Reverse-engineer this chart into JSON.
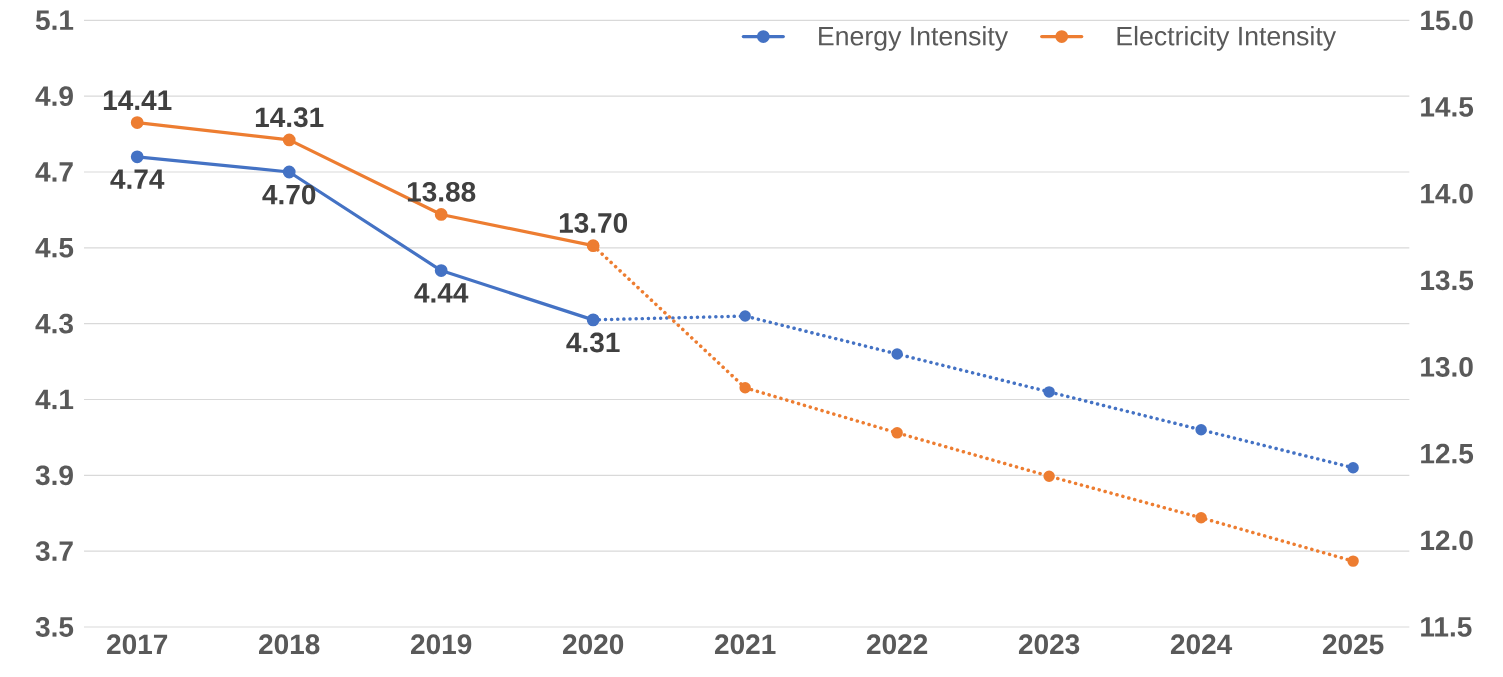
{
  "chart_data": {
    "type": "line",
    "categories": [
      "2017",
      "2018",
      "2019",
      "2020",
      "2021",
      "2022",
      "2023",
      "2024",
      "2025"
    ],
    "series": [
      {
        "name": "Energy Intensity",
        "color": "#4472c4",
        "line_style": "solid",
        "values": [
          4.74,
          4.7,
          4.44,
          4.31,
          null,
          null,
          null,
          null,
          null
        ],
        "value_labels": [
          "4.74",
          "4.70",
          "4.44",
          "4.31",
          null,
          null,
          null,
          null,
          null
        ]
      },
      {
        "color": "#4472c4",
        "line_style": "dotted",
        "values": [
          null,
          null,
          null,
          4.31,
          4.32,
          4.22,
          4.12,
          4.02,
          3.92
        ]
      },
      {
        "name": "Electricity Intensity",
        "color": "#ed7d31",
        "axis": "y2",
        "line_style": "solid",
        "values": [
          14.41,
          14.31,
          13.88,
          13.7,
          null,
          null,
          null,
          null,
          null
        ],
        "value_labels": [
          "14.41",
          "14.31",
          "13.88",
          "13.70",
          null,
          null,
          null,
          null,
          null
        ]
      },
      {
        "color": "#ed7d31",
        "axis": "y2",
        "line_style": "dotted",
        "values": [
          null,
          null,
          null,
          13.7,
          12.88,
          12.62,
          12.37,
          12.13,
          11.88
        ]
      }
    ],
    "ylim": [
      3.5,
      5.1
    ],
    "yticks": [
      3.5,
      3.7,
      3.9,
      4.1,
      4.3,
      4.5,
      4.7,
      4.9,
      5.1
    ],
    "y2lim": [
      11.5,
      15.0
    ],
    "y2ticks": [
      11.5,
      {
        "value": 12,
        "label": "12.0"
      },
      12.5,
      {
        "value": 13,
        "label": "13.0"
      },
      13.5,
      {
        "value": 14,
        "label": "14.0"
      },
      14.5,
      {
        "value": 15,
        "label": "15.0"
      }
    ],
    "grid": "y",
    "legend": "top right",
    "marker": "circle"
  }
}
